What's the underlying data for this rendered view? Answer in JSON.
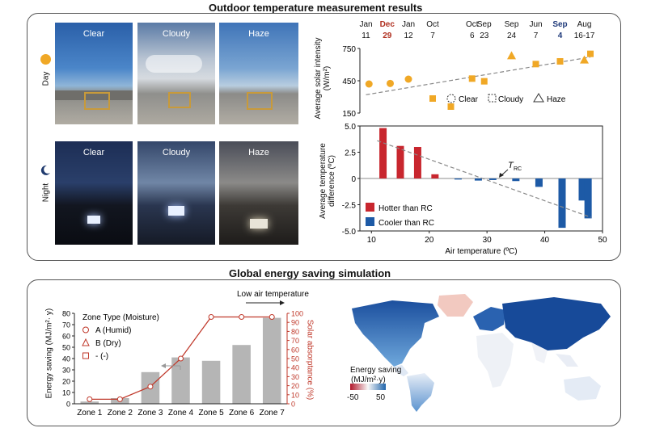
{
  "top": {
    "title": "Outdoor temperature measurement results",
    "row_day": "Day",
    "row_night": "Night",
    "day_photos": [
      "Clear",
      "Cloudy",
      "Haze"
    ],
    "night_photos": [
      "Clear",
      "Cloudy",
      "Haze"
    ]
  },
  "bottom": {
    "title": "Global energy saving simulation"
  },
  "chart_data": [
    {
      "id": "solar",
      "type": "scatter",
      "ylabel": "Average solar intensity (W/m²)",
      "ylabel_main": "Average solar intensity",
      "ylabel_unit": "(W/m²)",
      "ylim": [
        150,
        750
      ],
      "yticks": [
        150,
        450,
        750
      ],
      "xlim": [
        10,
        50
      ],
      "dates": [
        {
          "m": "Jan",
          "d": "11",
          "x": 11,
          "hl": false
        },
        {
          "m": "Dec",
          "d": "29",
          "x": 14.5,
          "hl": true,
          "hlcolor": "#b03020"
        },
        {
          "m": "Jan",
          "d": "12",
          "x": 18,
          "hl": false
        },
        {
          "m": "Oct",
          "d": "7",
          "x": 22,
          "hl": false
        },
        {
          "m": "Oct",
          "d": "6",
          "x": 28.5,
          "hl": false
        },
        {
          "m": "Sep",
          "d": "23",
          "x": 30.5,
          "hl": false
        },
        {
          "m": "Sep",
          "d": "24",
          "x": 35,
          "hl": false
        },
        {
          "m": "Jun",
          "d": "7",
          "x": 39,
          "hl": false
        },
        {
          "m": "Sep",
          "d": "4",
          "x": 43,
          "hl": true,
          "hlcolor": "#1f3a7a"
        },
        {
          "m": "Aug",
          "d": "16-17",
          "x": 47,
          "hl": false
        }
      ],
      "points": [
        {
          "x": 11.5,
          "y": 420,
          "shape": "circle"
        },
        {
          "x": 15,
          "y": 425,
          "shape": "circle"
        },
        {
          "x": 18,
          "y": 465,
          "shape": "circle"
        },
        {
          "x": 22,
          "y": 285,
          "shape": "square"
        },
        {
          "x": 25,
          "y": 210,
          "shape": "square"
        },
        {
          "x": 28.5,
          "y": 470,
          "shape": "square"
        },
        {
          "x": 30.5,
          "y": 445,
          "shape": "square"
        },
        {
          "x": 35,
          "y": 680,
          "shape": "triangle"
        },
        {
          "x": 39,
          "y": 605,
          "shape": "square"
        },
        {
          "x": 43,
          "y": 630,
          "shape": "square"
        },
        {
          "x": 47,
          "y": 640,
          "shape": "triangle"
        },
        {
          "x": 48,
          "y": 700,
          "shape": "square"
        }
      ],
      "trend": [
        [
          11,
          320
        ],
        [
          48,
          670
        ]
      ],
      "legend": [
        "Clear",
        "Cloudy",
        "Haze"
      ]
    },
    {
      "id": "tempdiff",
      "type": "bar",
      "xlabel": "Air temperature (ºC)",
      "ylabel_main": "Average temperature",
      "ylabel_sub": "difference (ºC)",
      "ylim": [
        -5,
        5
      ],
      "yticks": [
        "5.0",
        "2.5",
        "0",
        "-2.5",
        "-5.0"
      ],
      "xlim": [
        8,
        50
      ],
      "xticks": [
        10,
        20,
        30,
        40,
        50
      ],
      "bars": [
        {
          "x": 12,
          "v": 4.8
        },
        {
          "x": 15,
          "v": 3.1
        },
        {
          "x": 18,
          "v": 3.0
        },
        {
          "x": 21,
          "v": 0.4
        },
        {
          "x": 25,
          "v": -0.1
        },
        {
          "x": 28.5,
          "v": -0.2
        },
        {
          "x": 31,
          "v": -0.15
        },
        {
          "x": 35,
          "v": -0.25
        },
        {
          "x": 39,
          "v": -0.8
        },
        {
          "x": 43,
          "v": -4.7
        },
        {
          "x": 46.5,
          "v": -2.1
        },
        {
          "x": 47.5,
          "v": -3.8
        }
      ],
      "trend": [
        [
          11,
          3.6
        ],
        [
          48,
          -3.7
        ]
      ],
      "annotation_main": "T",
      "annotation_sub": "RC",
      "legend": [
        {
          "label": "Hotter than RC",
          "color": "#c8262e"
        },
        {
          "label": "Cooler than RC",
          "color": "#1d5aa6"
        }
      ]
    },
    {
      "id": "energy",
      "type": "bar",
      "categories": [
        "Zone 1",
        "Zone 2",
        "Zone 3",
        "Zone 4",
        "Zone 5",
        "Zone 6",
        "Zone 7"
      ],
      "values": [
        2,
        5,
        28,
        41,
        38,
        52,
        76
      ],
      "ylim": [
        0,
        80
      ],
      "yticks": [
        0,
        10,
        20,
        30,
        40,
        50,
        60,
        70,
        80
      ],
      "ylabel": "Energy saving (MJ/m²·y)",
      "ylabel_main": "Energy saving",
      "ylabel_unit": "(MJ/m²· y)",
      "y2label": "Solar absorptance (%)",
      "y2lim": [
        0,
        100
      ],
      "y2ticks": [
        0,
        10,
        20,
        30,
        40,
        50,
        60,
        70,
        80,
        90,
        100
      ],
      "absorptance": [
        5,
        5,
        19,
        50,
        96,
        96,
        96
      ],
      "arrow_label": "Low air temperature",
      "legend_title": "Zone Type (Moisture)",
      "legend_items": [
        "A (Humid)",
        "B (Dry)",
        "- (-)"
      ]
    }
  ],
  "map": {
    "legend_title": "Energy saving",
    "legend_unit": "(MJ/m²·y)",
    "min_label": "-50",
    "max_label": "50"
  }
}
